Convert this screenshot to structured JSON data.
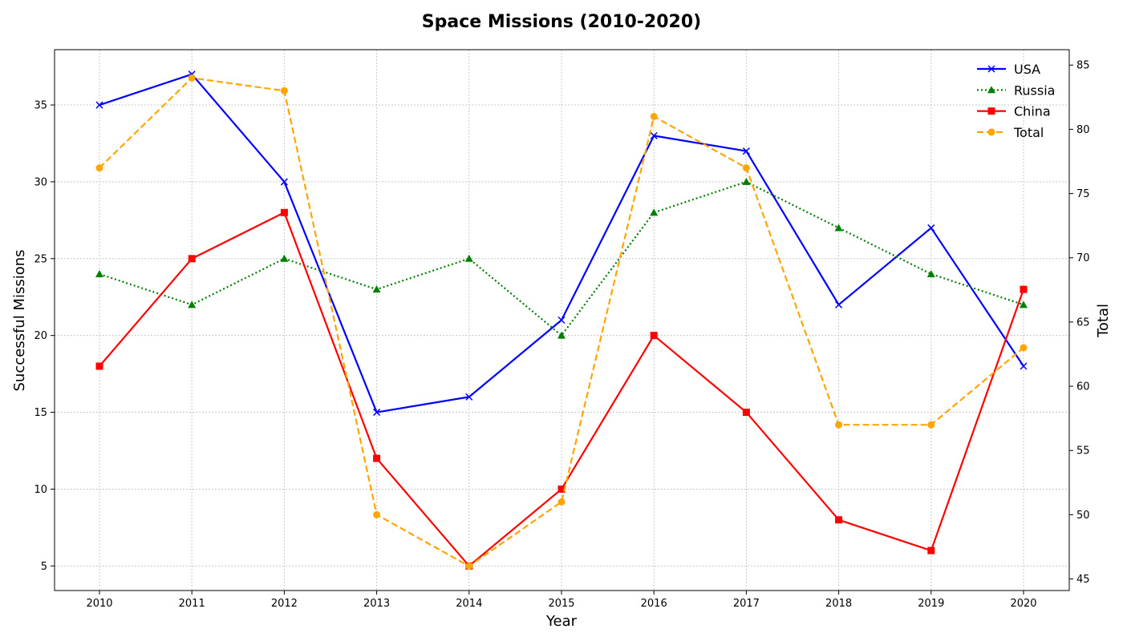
{
  "chart_data": {
    "type": "line",
    "title": "Space Missions (2010-2020)",
    "xlabel": "Year",
    "ylabel": "Successful Missions",
    "y2label": "Total",
    "x": [
      2010,
      2011,
      2012,
      2013,
      2014,
      2015,
      2016,
      2017,
      2018,
      2019,
      2020
    ],
    "ylim": [
      3.4,
      38.6
    ],
    "yticks": [
      5,
      10,
      15,
      20,
      25,
      30,
      35
    ],
    "y2lim": [
      44.1,
      86.2
    ],
    "y2ticks": [
      45,
      50,
      55,
      60,
      65,
      70,
      75,
      80,
      85
    ],
    "grid": true,
    "legend_position": "top-right",
    "series": [
      {
        "name": "USA",
        "axis": "left",
        "color": "#0000ff",
        "linestyle": "solid",
        "marker": "x",
        "values": [
          35,
          37,
          30,
          15,
          16,
          21,
          33,
          32,
          22,
          27,
          18
        ]
      },
      {
        "name": "Russia",
        "axis": "left",
        "color": "#008000",
        "linestyle": "dotted",
        "marker": "triangle",
        "values": [
          24,
          22,
          25,
          23,
          25,
          20,
          28,
          30,
          27,
          24,
          22
        ]
      },
      {
        "name": "China",
        "axis": "left",
        "color": "#ff0000",
        "linestyle": "solid",
        "marker": "square",
        "values": [
          18,
          25,
          28,
          12,
          5,
          10,
          20,
          15,
          8,
          6,
          23
        ]
      },
      {
        "name": "Total",
        "axis": "right",
        "color": "#ffa500",
        "linestyle": "dashed",
        "marker": "circle",
        "values": [
          77,
          84,
          83,
          50,
          46,
          51,
          81,
          77,
          57,
          57,
          63
        ]
      }
    ]
  }
}
